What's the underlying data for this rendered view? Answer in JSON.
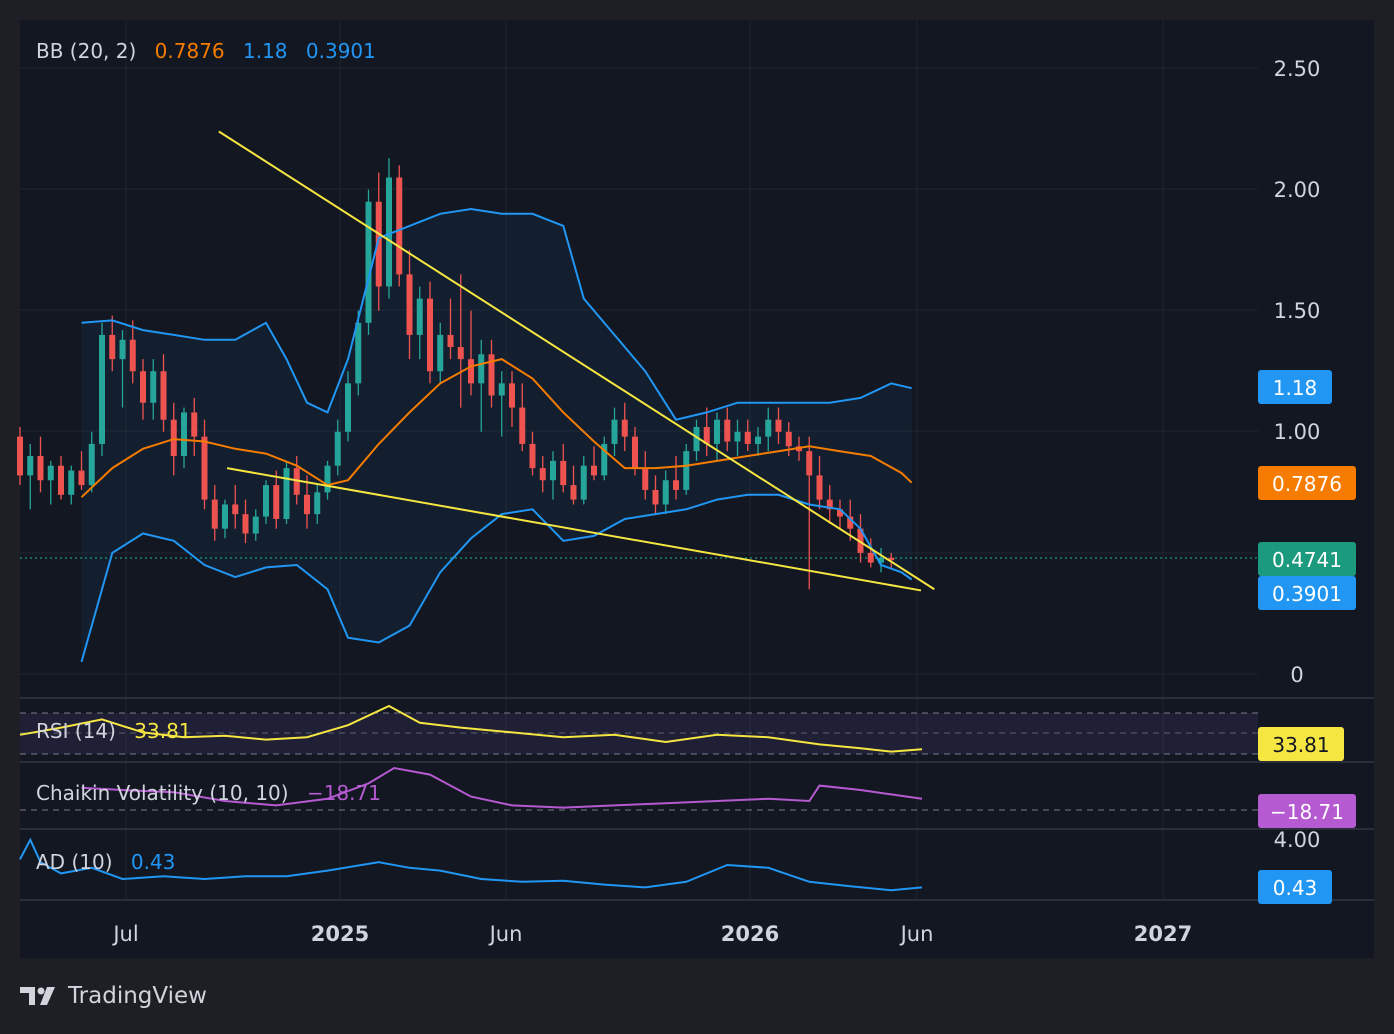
{
  "branding": {
    "name": "TradingView"
  },
  "colors": {
    "background": "#131722",
    "bb_basis": "#f57c00",
    "bb_band": "#2196f3",
    "rsi": "#f5e642",
    "chaikin": "#b55ad1",
    "ad": "#2196f3",
    "bull": "#26a69a",
    "bear": "#ef5350",
    "trendline": "#f5e642",
    "last_price": "#1c9a7e"
  },
  "chart_data": {
    "type": "candlestick",
    "x_axis": {
      "labels": [
        "Jul",
        "2025",
        "Jun",
        "2026",
        "Jun",
        "2027"
      ]
    },
    "price_axis": {
      "labels": [
        "2.50",
        "2.00",
        "1.50",
        "1.00",
        "0"
      ],
      "range": [
        0,
        2.7
      ]
    },
    "price_badges": {
      "bb_upper": "1.18",
      "bb_basis": "0.7876",
      "last": "0.4741",
      "bb_lower": "0.3901"
    },
    "indicators": {
      "bb": {
        "name": "BB (20, 2)",
        "basis": "0.7876",
        "upper": "1.18",
        "lower": "0.3901"
      },
      "rsi": {
        "name": "RSI (14)",
        "value": "33.81"
      },
      "chaikin": {
        "name": "Chaikin Volatility (10, 10)",
        "value": "−18.71"
      },
      "ad": {
        "name": "AD (10)",
        "value": "0.43",
        "axis_label": "4.00"
      }
    },
    "trendlines": {
      "upper": [
        [
          1.94,
          2.24
        ],
        [
          8.92,
          0.35
        ]
      ],
      "lower": [
        [
          2.02,
          0.85
        ],
        [
          8.79,
          0.345
        ]
      ]
    },
    "candles": [
      [
        0.0,
        0.98,
        1.02,
        0.78,
        0.82
      ],
      [
        0.1,
        0.82,
        0.95,
        0.68,
        0.9
      ],
      [
        0.2,
        0.9,
        0.98,
        0.75,
        0.8
      ],
      [
        0.3,
        0.8,
        0.88,
        0.7,
        0.86
      ],
      [
        0.4,
        0.86,
        0.9,
        0.72,
        0.74
      ],
      [
        0.5,
        0.74,
        0.86,
        0.7,
        0.84
      ],
      [
        0.6,
        0.84,
        0.92,
        0.76,
        0.78
      ],
      [
        0.7,
        0.78,
        1.0,
        0.75,
        0.95
      ],
      [
        0.8,
        0.95,
        1.45,
        0.9,
        1.4
      ],
      [
        0.9,
        1.4,
        1.48,
        1.25,
        1.3
      ],
      [
        1.0,
        1.3,
        1.42,
        1.1,
        1.38
      ],
      [
        1.1,
        1.38,
        1.46,
        1.2,
        1.25
      ],
      [
        1.2,
        1.25,
        1.3,
        1.05,
        1.12
      ],
      [
        1.3,
        1.12,
        1.3,
        1.05,
        1.25
      ],
      [
        1.4,
        1.25,
        1.32,
        1.0,
        1.05
      ],
      [
        1.5,
        1.05,
        1.12,
        0.82,
        0.9
      ],
      [
        1.6,
        0.9,
        1.1,
        0.85,
        1.08
      ],
      [
        1.7,
        1.08,
        1.14,
        0.9,
        0.98
      ],
      [
        1.8,
        0.98,
        1.05,
        0.68,
        0.72
      ],
      [
        1.9,
        0.72,
        0.78,
        0.55,
        0.6
      ],
      [
        2.0,
        0.6,
        0.72,
        0.56,
        0.7
      ],
      [
        2.1,
        0.7,
        0.78,
        0.6,
        0.66
      ],
      [
        2.2,
        0.66,
        0.72,
        0.54,
        0.58
      ],
      [
        2.3,
        0.58,
        0.68,
        0.55,
        0.65
      ],
      [
        2.4,
        0.65,
        0.8,
        0.62,
        0.78
      ],
      [
        2.5,
        0.78,
        0.84,
        0.6,
        0.64
      ],
      [
        2.6,
        0.64,
        0.88,
        0.62,
        0.85
      ],
      [
        2.7,
        0.85,
        0.9,
        0.7,
        0.74
      ],
      [
        2.8,
        0.74,
        0.82,
        0.6,
        0.66
      ],
      [
        2.9,
        0.66,
        0.78,
        0.62,
        0.75
      ],
      [
        3.0,
        0.75,
        0.88,
        0.72,
        0.86
      ],
      [
        3.1,
        0.86,
        1.05,
        0.82,
        1.0
      ],
      [
        3.2,
        1.0,
        1.25,
        0.96,
        1.2
      ],
      [
        3.3,
        1.2,
        1.5,
        1.15,
        1.45
      ],
      [
        3.4,
        1.45,
        2.0,
        1.4,
        1.95
      ],
      [
        3.5,
        1.95,
        2.07,
        1.5,
        1.6
      ],
      [
        3.6,
        1.6,
        2.13,
        1.55,
        2.05
      ],
      [
        3.7,
        2.05,
        2.1,
        1.6,
        1.65
      ],
      [
        3.8,
        1.65,
        1.75,
        1.3,
        1.4
      ],
      [
        3.9,
        1.4,
        1.6,
        1.3,
        1.55
      ],
      [
        4.0,
        1.55,
        1.62,
        1.2,
        1.25
      ],
      [
        4.1,
        1.25,
        1.45,
        1.2,
        1.4
      ],
      [
        4.2,
        1.4,
        1.55,
        1.3,
        1.35
      ],
      [
        4.3,
        1.35,
        1.65,
        1.1,
        1.3
      ],
      [
        4.4,
        1.3,
        1.5,
        1.15,
        1.2
      ],
      [
        4.5,
        1.2,
        1.38,
        1.0,
        1.32
      ],
      [
        4.6,
        1.32,
        1.38,
        1.1,
        1.15
      ],
      [
        4.7,
        1.15,
        1.25,
        0.98,
        1.2
      ],
      [
        4.8,
        1.2,
        1.25,
        1.02,
        1.1
      ],
      [
        4.9,
        1.1,
        1.2,
        0.92,
        0.95
      ],
      [
        5.0,
        0.95,
        1.0,
        0.82,
        0.85
      ],
      [
        5.1,
        0.85,
        0.9,
        0.75,
        0.8
      ],
      [
        5.2,
        0.8,
        0.92,
        0.72,
        0.88
      ],
      [
        5.3,
        0.88,
        0.95,
        0.75,
        0.78
      ],
      [
        5.4,
        0.78,
        0.86,
        0.7,
        0.72
      ],
      [
        5.5,
        0.72,
        0.9,
        0.7,
        0.86
      ],
      [
        5.6,
        0.86,
        0.94,
        0.8,
        0.82
      ],
      [
        5.7,
        0.82,
        0.98,
        0.8,
        0.95
      ],
      [
        5.8,
        0.95,
        1.1,
        0.9,
        1.05
      ],
      [
        5.9,
        1.05,
        1.12,
        0.92,
        0.98
      ],
      [
        6.0,
        0.98,
        1.02,
        0.82,
        0.85
      ],
      [
        6.1,
        0.85,
        0.92,
        0.72,
        0.76
      ],
      [
        6.2,
        0.76,
        0.82,
        0.66,
        0.7
      ],
      [
        6.3,
        0.7,
        0.84,
        0.66,
        0.8
      ],
      [
        6.4,
        0.8,
        0.9,
        0.72,
        0.76
      ],
      [
        6.5,
        0.76,
        0.95,
        0.74,
        0.92
      ],
      [
        6.6,
        0.92,
        1.05,
        0.88,
        1.02
      ],
      [
        6.7,
        1.02,
        1.1,
        0.9,
        0.95
      ],
      [
        6.8,
        0.95,
        1.08,
        0.88,
        1.05
      ],
      [
        6.9,
        1.05,
        1.1,
        0.92,
        0.96
      ],
      [
        7.0,
        0.96,
        1.05,
        0.9,
        1.0
      ],
      [
        7.1,
        1.0,
        1.05,
        0.92,
        0.95
      ],
      [
        7.2,
        0.95,
        1.02,
        0.9,
        0.98
      ],
      [
        7.3,
        0.98,
        1.1,
        0.92,
        1.05
      ],
      [
        7.4,
        1.05,
        1.1,
        0.95,
        1.0
      ],
      [
        7.5,
        1.0,
        1.04,
        0.9,
        0.94
      ],
      [
        7.6,
        0.94,
        0.98,
        0.88,
        0.92
      ],
      [
        7.7,
        0.92,
        0.98,
        0.35,
        0.82
      ],
      [
        7.8,
        0.82,
        0.9,
        0.68,
        0.72
      ],
      [
        7.9,
        0.72,
        0.78,
        0.62,
        0.68
      ],
      [
        8.0,
        0.68,
        0.72,
        0.6,
        0.65
      ],
      [
        8.1,
        0.65,
        0.72,
        0.55,
        0.6
      ],
      [
        8.2,
        0.6,
        0.66,
        0.46,
        0.5
      ],
      [
        8.3,
        0.5,
        0.56,
        0.44,
        0.46
      ],
      [
        8.4,
        0.46,
        0.52,
        0.42,
        0.48
      ],
      [
        8.5,
        0.48,
        0.5,
        0.44,
        0.47
      ]
    ],
    "bb_upper": [
      [
        0.6,
        1.45
      ],
      [
        0.9,
        1.46
      ],
      [
        1.2,
        1.42
      ],
      [
        1.5,
        1.4
      ],
      [
        1.8,
        1.38
      ],
      [
        2.1,
        1.38
      ],
      [
        2.4,
        1.45
      ],
      [
        2.6,
        1.3
      ],
      [
        2.8,
        1.12
      ],
      [
        3.0,
        1.08
      ],
      [
        3.2,
        1.3
      ],
      [
        3.5,
        1.8
      ],
      [
        3.8,
        1.85
      ],
      [
        4.1,
        1.9
      ],
      [
        4.4,
        1.92
      ],
      [
        4.7,
        1.9
      ],
      [
        5.0,
        1.9
      ],
      [
        5.3,
        1.85
      ],
      [
        5.5,
        1.55
      ],
      [
        5.8,
        1.4
      ],
      [
        6.1,
        1.25
      ],
      [
        6.4,
        1.05
      ],
      [
        6.7,
        1.08
      ],
      [
        7.0,
        1.12
      ],
      [
        7.3,
        1.12
      ],
      [
        7.6,
        1.12
      ],
      [
        7.9,
        1.12
      ],
      [
        8.2,
        1.14
      ],
      [
        8.5,
        1.2
      ],
      [
        8.7,
        1.18
      ]
    ],
    "bb_basis": [
      [
        0.6,
        0.73
      ],
      [
        0.9,
        0.85
      ],
      [
        1.2,
        0.93
      ],
      [
        1.5,
        0.97
      ],
      [
        1.8,
        0.96
      ],
      [
        2.1,
        0.93
      ],
      [
        2.4,
        0.91
      ],
      [
        2.7,
        0.86
      ],
      [
        3.0,
        0.78
      ],
      [
        3.2,
        0.8
      ],
      [
        3.5,
        0.95
      ],
      [
        3.8,
        1.08
      ],
      [
        4.1,
        1.2
      ],
      [
        4.4,
        1.27
      ],
      [
        4.7,
        1.3
      ],
      [
        5.0,
        1.22
      ],
      [
        5.3,
        1.08
      ],
      [
        5.6,
        0.96
      ],
      [
        5.9,
        0.85
      ],
      [
        6.2,
        0.85
      ],
      [
        6.5,
        0.86
      ],
      [
        6.8,
        0.88
      ],
      [
        7.1,
        0.9
      ],
      [
        7.4,
        0.92
      ],
      [
        7.7,
        0.94
      ],
      [
        8.0,
        0.92
      ],
      [
        8.3,
        0.9
      ],
      [
        8.6,
        0.83
      ],
      [
        8.7,
        0.79
      ]
    ],
    "bb_lower": [
      [
        0.6,
        0.05
      ],
      [
        0.9,
        0.5
      ],
      [
        1.2,
        0.58
      ],
      [
        1.5,
        0.55
      ],
      [
        1.8,
        0.45
      ],
      [
        2.1,
        0.4
      ],
      [
        2.4,
        0.44
      ],
      [
        2.7,
        0.45
      ],
      [
        3.0,
        0.35
      ],
      [
        3.2,
        0.15
      ],
      [
        3.5,
        0.13
      ],
      [
        3.8,
        0.2
      ],
      [
        4.1,
        0.42
      ],
      [
        4.4,
        0.56
      ],
      [
        4.7,
        0.66
      ],
      [
        5.0,
        0.68
      ],
      [
        5.3,
        0.55
      ],
      [
        5.6,
        0.57
      ],
      [
        5.9,
        0.64
      ],
      [
        6.2,
        0.66
      ],
      [
        6.5,
        0.68
      ],
      [
        6.8,
        0.72
      ],
      [
        7.1,
        0.74
      ],
      [
        7.4,
        0.74
      ],
      [
        7.7,
        0.7
      ],
      [
        8.0,
        0.68
      ],
      [
        8.2,
        0.6
      ],
      [
        8.4,
        0.45
      ],
      [
        8.6,
        0.42
      ],
      [
        8.7,
        0.39
      ]
    ],
    "rsi": [
      [
        0.0,
        0.4
      ],
      [
        0.4,
        0.55
      ],
      [
        0.8,
        0.72
      ],
      [
        1.2,
        0.45
      ],
      [
        1.6,
        0.35
      ],
      [
        2.0,
        0.38
      ],
      [
        2.4,
        0.3
      ],
      [
        2.8,
        0.35
      ],
      [
        3.2,
        0.6
      ],
      [
        3.6,
        1.0
      ],
      [
        3.9,
        0.65
      ],
      [
        4.3,
        0.55
      ],
      [
        4.8,
        0.45
      ],
      [
        5.3,
        0.35
      ],
      [
        5.8,
        0.4
      ],
      [
        6.3,
        0.25
      ],
      [
        6.8,
        0.4
      ],
      [
        7.3,
        0.35
      ],
      [
        7.8,
        0.2
      ],
      [
        8.2,
        0.12
      ],
      [
        8.5,
        0.05
      ],
      [
        8.8,
        0.1
      ]
    ],
    "chaikin": [
      [
        0.6,
        0.55
      ],
      [
        1.0,
        0.5
      ],
      [
        1.5,
        0.45
      ],
      [
        2.0,
        0.25
      ],
      [
        2.5,
        0.15
      ],
      [
        3.0,
        0.3
      ],
      [
        3.4,
        0.65
      ],
      [
        3.65,
        1.0
      ],
      [
        4.0,
        0.85
      ],
      [
        4.4,
        0.35
      ],
      [
        4.8,
        0.15
      ],
      [
        5.3,
        0.1
      ],
      [
        5.8,
        0.15
      ],
      [
        6.3,
        0.2
      ],
      [
        6.8,
        0.25
      ],
      [
        7.3,
        0.3
      ],
      [
        7.7,
        0.25
      ],
      [
        7.8,
        0.6
      ],
      [
        8.2,
        0.5
      ],
      [
        8.5,
        0.4
      ],
      [
        8.8,
        0.3
      ]
    ],
    "ad": [
      [
        0.0,
        0.6
      ],
      [
        0.1,
        0.95
      ],
      [
        0.2,
        0.55
      ],
      [
        0.4,
        0.35
      ],
      [
        0.7,
        0.45
      ],
      [
        1.0,
        0.25
      ],
      [
        1.4,
        0.3
      ],
      [
        1.8,
        0.25
      ],
      [
        2.2,
        0.3
      ],
      [
        2.6,
        0.3
      ],
      [
        3.0,
        0.4
      ],
      [
        3.5,
        0.55
      ],
      [
        3.8,
        0.45
      ],
      [
        4.1,
        0.4
      ],
      [
        4.5,
        0.25
      ],
      [
        4.9,
        0.2
      ],
      [
        5.3,
        0.22
      ],
      [
        5.7,
        0.15
      ],
      [
        6.1,
        0.1
      ],
      [
        6.5,
        0.2
      ],
      [
        6.9,
        0.5
      ],
      [
        7.3,
        0.45
      ],
      [
        7.7,
        0.2
      ],
      [
        8.1,
        0.12
      ],
      [
        8.5,
        0.05
      ],
      [
        8.8,
        0.1
      ]
    ]
  }
}
